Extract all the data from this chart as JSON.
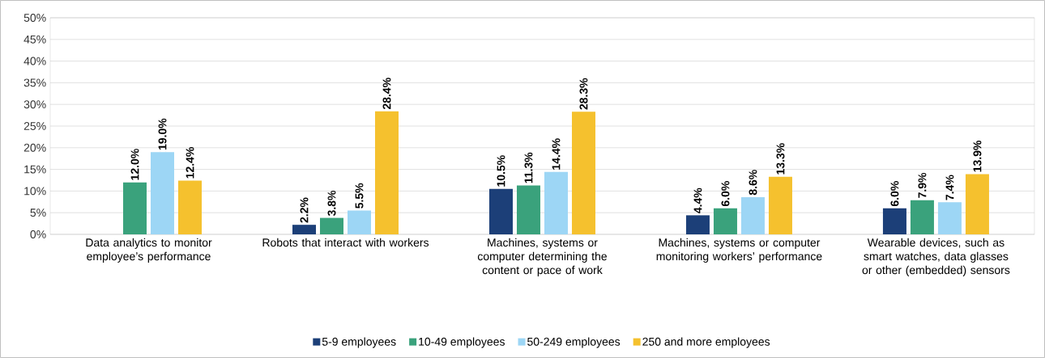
{
  "chart_data": {
    "type": "bar",
    "categories": [
      "Data analytics to monitor employee’s performance",
      "Robots that interact with workers",
      "Machines, systems or computer determining the content or pace of work",
      "Machines, systems or computer monitoring workers’ performance",
      "Wearable devices, such as smart watches, data glasses or other (embedded) sensors"
    ],
    "series": [
      {
        "name": "5-9 employees",
        "color": "#1c3f78",
        "values": [
          null,
          2.2,
          10.5,
          4.4,
          6.0
        ],
        "value_labels": [
          null,
          "2.2%",
          "10.5%",
          "4.4%",
          "6.0%"
        ]
      },
      {
        "name": "10-49 employees",
        "color": "#3aa27c",
        "values": [
          12.0,
          3.8,
          11.3,
          6.0,
          7.9
        ],
        "value_labels": [
          "12.0%",
          "3.8%",
          "11.3%",
          "6.0%",
          "7.9%"
        ]
      },
      {
        "name": "50-249 employees",
        "color": "#9dd6f5",
        "values": [
          19.0,
          5.5,
          14.4,
          8.6,
          7.4
        ],
        "value_labels": [
          "19.0%",
          "5.5%",
          "14.4%",
          "8.6%",
          "7.4%"
        ]
      },
      {
        "name": "250 and more employees",
        "color": "#f5c12e",
        "values": [
          12.4,
          28.4,
          28.3,
          13.3,
          13.9
        ],
        "value_labels": [
          "12.4%",
          "28.4%",
          "28.3%",
          "13.3%",
          "13.9%"
        ]
      }
    ],
    "ylim": [
      0,
      50
    ],
    "yticks": [
      {
        "value": 0,
        "label": "0%"
      },
      {
        "value": 5,
        "label": "5%"
      },
      {
        "value": 10,
        "label": "10%"
      },
      {
        "value": 15,
        "label": "15%"
      },
      {
        "value": 20,
        "label": "20%"
      },
      {
        "value": 25,
        "label": "25%"
      },
      {
        "value": 30,
        "label": "30%"
      },
      {
        "value": 35,
        "label": "35%"
      },
      {
        "value": 40,
        "label": "40%"
      },
      {
        "value": 45,
        "label": "45%"
      },
      {
        "value": 50,
        "label": "50%"
      }
    ],
    "grid": "y",
    "legend": "bottom"
  }
}
